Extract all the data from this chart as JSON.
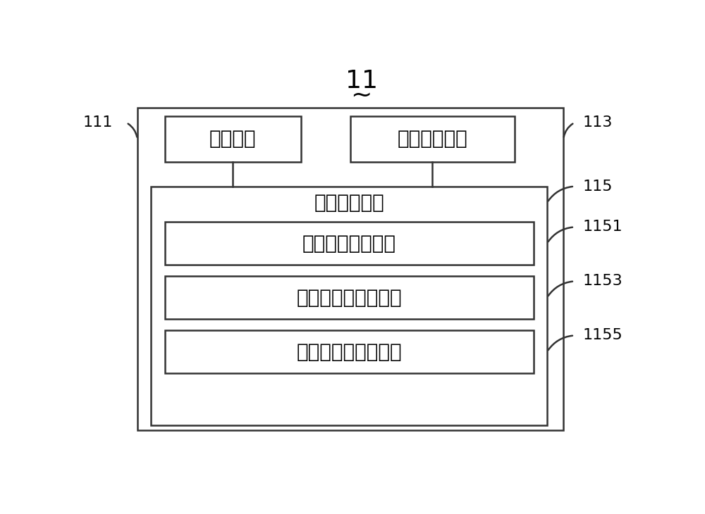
{
  "title": "11",
  "title_tilde": "~",
  "bg_color": "#ffffff",
  "box_color": "#ffffff",
  "border_color": "#333333",
  "text_color": "#000000",
  "top_box_111_label": "相机模块",
  "top_box_113_label": "无线通信模块",
  "middle_outer_label": "校正软件模块",
  "sub_box_1151_label": "曝光量调整子模块",
  "sub_box_1153_label": "拍摄距离提示子模块",
  "sub_box_1155_label": "校正系数生成子模块",
  "label_111": "111",
  "label_113": "113",
  "label_115": "115",
  "label_1151": "1151",
  "label_1153": "1153",
  "label_1155": "1155",
  "font_size_main": 20,
  "font_size_label": 16,
  "font_size_title": 26
}
